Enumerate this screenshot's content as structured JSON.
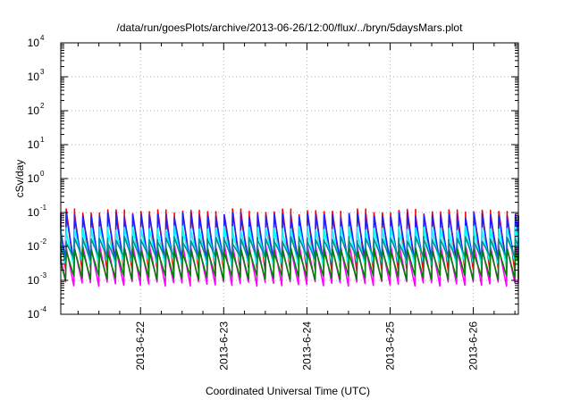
{
  "chart_data": {
    "type": "line",
    "title": "/data/run/goesPlots/archive/2013-06-26/12:00/flux/../bryn/5daysMars.plot",
    "xlabel": "Coordinated Universal Time (UTC)",
    "ylabel": "cSv/day",
    "yscale": "log",
    "ylim": [
      0.0001,
      10000
    ],
    "xlim": [
      "2013-06-21T01:00",
      "2013-06-26T13:00"
    ],
    "grid": true,
    "legend": "none",
    "y_ticks": [
      {
        "base": "10",
        "exp": "-4",
        "value": 0.0001
      },
      {
        "base": "10",
        "exp": "-3",
        "value": 0.001
      },
      {
        "base": "10",
        "exp": "-2",
        "value": 0.01
      },
      {
        "base": "10",
        "exp": "-1",
        "value": 0.1
      },
      {
        "base": "10",
        "exp": "0",
        "value": 1
      },
      {
        "base": "10",
        "exp": "1",
        "value": 10
      },
      {
        "base": "10",
        "exp": "2",
        "value": 100
      },
      {
        "base": "10",
        "exp": "3",
        "value": 1000
      },
      {
        "base": "10",
        "exp": "4",
        "value": 10000
      }
    ],
    "x_ticks": [
      {
        "label": "2013-6-22",
        "value": "2013-06-22T00:00"
      },
      {
        "label": "2013-6-23",
        "value": "2013-06-23T00:00"
      },
      {
        "label": "2013-6-24",
        "value": "2013-06-24T00:00"
      },
      {
        "label": "2013-6-25",
        "value": "2013-06-25T00:00"
      },
      {
        "label": "2013-6-26",
        "value": "2013-06-26T00:00"
      }
    ],
    "cycle_hours": 2.4,
    "series": [
      {
        "color": "#ff0000",
        "low": 0.0022,
        "high_min": 0.07,
        "high_max": 0.13
      },
      {
        "color": "#2020ff",
        "low": 0.0035,
        "high_min": 0.06,
        "high_max": 0.1
      },
      {
        "color": "#ff00ff",
        "low": 0.0008,
        "high_min": 0.008,
        "high_max": 0.012
      },
      {
        "color": "#00ffff",
        "low": 0.003,
        "high_min": 0.025,
        "high_max": 0.04
      },
      {
        "color": "#009090",
        "low": 0.0045,
        "high_min": 0.012,
        "high_max": 0.02
      },
      {
        "color": "#008000",
        "low": 0.0012,
        "high_min": 0.006,
        "high_max": 0.009
      }
    ]
  }
}
